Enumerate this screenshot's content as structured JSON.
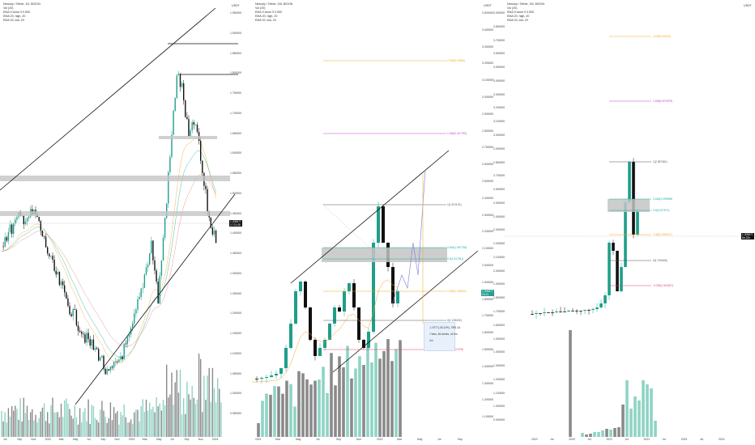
{
  "panels": [
    {
      "legend": [
        "Nexusly / Tether, 1D, BIGON",
        "Vol (20)",
        "EMA 9 close 9 0.500",
        "EMA 20, high, 20",
        "EMA 20, low, 20"
      ],
      "currency": "USDT",
      "y_labels": [
        "1.950000",
        "1.900000",
        "1.850000",
        "1.800000",
        "1.750000",
        "1.700000",
        "1.650000",
        "1.600000",
        "1.550000",
        "1.500000",
        "1.450000",
        "1.400000",
        "1.350000",
        "1.300000",
        "1.250000",
        "1.200000",
        "1.150000",
        "1.100000",
        "1.050000",
        "1.000000",
        "0.950000"
      ],
      "x_labels": [
        "Jul",
        "Sep",
        "Nov",
        "2022",
        "Mar",
        "May",
        "Jul",
        "Sep",
        "Nov",
        "2023",
        "Mar",
        "May",
        "Jul",
        "Sep",
        "Nov",
        "2024"
      ],
      "price_tag": {
        "value": "1.309877",
        "sub": "17:21:08"
      }
    },
    {
      "legend": [
        "Nexusly / Tether, 1W, BIGON",
        "Vol (20)",
        "EMA 9 close 9 0.500",
        "EMA 20, high, 20",
        "EMA 20, low, 20"
      ],
      "currency": "USDT",
      "y_labels": [
        "3.500000",
        "3.400000",
        "3.300000",
        "3.200000",
        "3.100000",
        "3.000000",
        "2.900000",
        "2.800000",
        "2.700000",
        "2.600000",
        "2.500000",
        "2.400000",
        "2.300000",
        "2.200000",
        "2.100000",
        "2.000000",
        "1.900000",
        "1.800000",
        "1.700000",
        "1.600000",
        "1.500000",
        "1.400000",
        "1.300000",
        "1.200000",
        "1.100000"
      ],
      "x_labels": [
        "2021",
        "Mar",
        "May",
        "Jul",
        "Sep",
        "Nov",
        "2022",
        "Mar",
        "May",
        "Jul",
        "Sep"
      ],
      "price_tag": {
        "value": "1.309877",
        "sub": "04:21"
      },
      "levels": [
        {
          "label": "2.618(3.09981)",
          "color": "#f5a623"
        },
        {
          "label": "1.618(2.417790)",
          "color": "#b845c8"
        },
        {
          "label": "1(1.871191)",
          "color": "#555555"
        },
        {
          "label": "0.618(1.597738)",
          "color": "#1ab0a0"
        },
        {
          "label": "0.5(1.517811)",
          "color": "#1ab0a0"
        },
        {
          "label": "0.382(1.430911)",
          "color": "#f5a623"
        },
        {
          "label": "0(1.139492)",
          "color": "#555555"
        },
        {
          "label": "-0.236(0.978)",
          "color": "#e0426a"
        }
      ],
      "tooltip": [
        "-1.5777(-36.12%), 7591.34",
        "7 bars, 48 weeks, 42 hrs",
        "Vol"
      ]
    },
    {
      "legend": [
        "Nexusly / Tether, 1M, BIGON",
        "Vol (20)",
        "EMA 9 close 9 0.500",
        "EMA 20, high, 20",
        "EMA 20, low, 20"
      ],
      "currency": "USDT",
      "y_labels": [
        "3.900000",
        "3.800000",
        "3.700000",
        "3.600000",
        "3.500000",
        "3.400000",
        "3.300000",
        "3.200000",
        "3.100000",
        "3.000000",
        "2.900000",
        "2.800000",
        "2.700000",
        "2.600000",
        "2.500000",
        "2.400000",
        "2.300000",
        "2.200000",
        "2.100000",
        "2.000000",
        "1.900000",
        "1.800000",
        "1.700000",
        "1.600000",
        "1.500000",
        "1.400000",
        "1.300000",
        "1.200000",
        "1.100000",
        "1.000000",
        "0.900000"
      ],
      "x_labels": [
        "2019",
        "Jul",
        "2020",
        "Jul",
        "2021",
        "Jul",
        "2022",
        "Jul",
        "2023",
        "Jul",
        "2024"
      ],
      "price_tag": {
        "value": "1.309877",
        "sub": "8d 22h"
      },
      "levels": [
        {
          "label": "2.618(3.63181)",
          "color": "#f5a623"
        },
        {
          "label": "1.618(2.870979)",
          "color": "#b845c8"
        },
        {
          "label": "1(2.387461)",
          "color": "#555555"
        },
        {
          "label": "0.618(2.099998)",
          "color": "#1ab0a0"
        },
        {
          "label": "0.5(2.007571)",
          "color": "#1ab0a0"
        },
        {
          "label": "0.382(1.906117)",
          "color": "#f5a623"
        },
        {
          "label": "0(1.700460)",
          "color": "#555555"
        },
        {
          "label": "-0.236(1.534327)",
          "color": "#e0426a"
        }
      ]
    }
  ],
  "chart_data": [
    {
      "type": "candlestick",
      "timeframe": "1D",
      "series": [
        {
          "name": "Vol",
          "values": []
        }
      ],
      "notes": "Daily candles, rising channel"
    },
    {
      "type": "candlestick",
      "timeframe": "1W",
      "series": [
        {
          "name": "Vol",
          "values": []
        }
      ],
      "fib_levels": [
        2.618,
        1.618,
        1,
        0.618,
        0.5,
        0.382,
        0,
        -0.236
      ]
    },
    {
      "type": "candlestick",
      "timeframe": "1M",
      "series": [
        {
          "name": "Vol",
          "values": []
        }
      ],
      "fib_levels": [
        2.618,
        1.618,
        1,
        0.618,
        0.5,
        0.382,
        0,
        -0.236
      ]
    }
  ],
  "colors": {
    "up": "#1f9e8a",
    "down": "#111111",
    "vol_up": "#8fd3c4",
    "vol_down": "#8a8a8a",
    "zone": "#c4c4c4"
  }
}
